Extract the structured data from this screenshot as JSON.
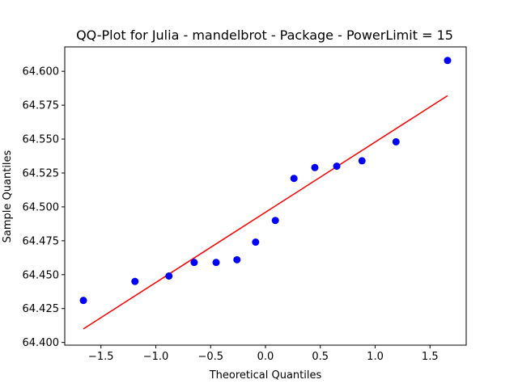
{
  "chart_data": {
    "type": "scatter",
    "title": "QQ-Plot for Julia - mandelbrot - Package - PowerLimit = 15",
    "xlabel": "Theoretical Quantiles",
    "ylabel": "Sample Quantiles",
    "xlim": [
      -1.83,
      1.83
    ],
    "ylim": [
      64.398,
      64.618
    ],
    "xticks": [
      -1.5,
      -1.0,
      -0.5,
      0.0,
      0.5,
      1.0,
      1.5
    ],
    "xtick_labels": [
      "−1.5",
      "−1.0",
      "−0.5",
      "0.0",
      "0.5",
      "1.0",
      "1.5"
    ],
    "yticks": [
      64.4,
      64.425,
      64.45,
      64.475,
      64.5,
      64.525,
      64.55,
      64.575,
      64.6
    ],
    "ytick_labels": [
      "64.400",
      "64.425",
      "64.450",
      "64.475",
      "64.500",
      "64.525",
      "64.550",
      "64.575",
      "64.600"
    ],
    "grid": false,
    "points": {
      "color": "#0000ff",
      "x": [
        -1.66,
        -1.19,
        -0.88,
        -0.65,
        -0.45,
        -0.26,
        -0.09,
        0.09,
        0.26,
        0.45,
        0.65,
        0.88,
        1.19,
        1.66
      ],
      "y": [
        64.431,
        64.445,
        64.449,
        64.459,
        64.459,
        64.461,
        64.474,
        64.49,
        64.521,
        64.529,
        64.53,
        64.534,
        64.548,
        64.608
      ]
    },
    "fit_line": {
      "color": "#ff0000",
      "x": [
        -1.66,
        1.66
      ],
      "y": [
        64.41,
        64.582
      ]
    }
  }
}
